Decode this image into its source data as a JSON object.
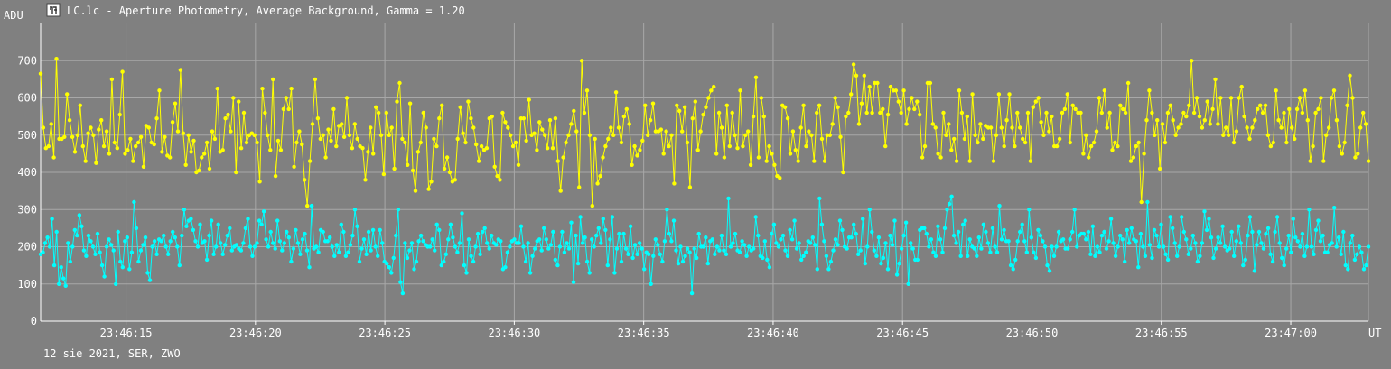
{
  "header": {
    "title": "LC.lc - Aperture Photometry, Average Background, Gamma = 1.20",
    "y_unit": "ADU",
    "x_unit": "UT"
  },
  "footer": {
    "caption": "12 sie 2021, SER, ZWO"
  },
  "colors": {
    "background": "#808080",
    "grid": "#a8a8a8",
    "axis": "#ffffff",
    "series_yellow": "#ffff00",
    "series_cyan": "#00ffff"
  },
  "chart_data": {
    "type": "line",
    "title": "LC.lc - Aperture Photometry, Average Background, Gamma = 1.20",
    "xlabel": "UT",
    "ylabel": "ADU",
    "ylim": [
      0,
      800
    ],
    "yticks": [
      0,
      100,
      200,
      300,
      400,
      500,
      600,
      700
    ],
    "xlim": [
      "23:46:11.7",
      "23:47:03.0"
    ],
    "xticks": [
      "23:46:15",
      "23:46:20",
      "23:46:25",
      "23:46:30",
      "23:46:35",
      "23:46:40",
      "23:46:45",
      "23:46:50",
      "23:46:55",
      "23:47:00"
    ],
    "grid": true,
    "marker": "dot",
    "series": [
      {
        "color": "#ffff00",
        "x_start": "23:46:11.7",
        "x_end": "23:47:03.0",
        "values": [
          665,
          520,
          465,
          470,
          530,
          440,
          705,
          490,
          490,
          495,
          610,
          540,
          495,
          455,
          500,
          580,
          470,
          430,
          505,
          520,
          500,
          425,
          515,
          540,
          470,
          510,
          450,
          650,
          480,
          465,
          555,
          670,
          450,
          460,
          490,
          430,
          470,
          480,
          495,
          415,
          525,
          520,
          480,
          475,
          545,
          620,
          455,
          495,
          445,
          440,
          535,
          585,
          510,
          675,
          505,
          420,
          500,
          455,
          485,
          400,
          405,
          440,
          450,
          480,
          410,
          510,
          490,
          625,
          455,
          460,
          545,
          555,
          510,
          600,
          400,
          590,
          465,
          560,
          480,
          500,
          505,
          500,
          480,
          375,
          625,
          560,
          500,
          460,
          650,
          390,
          485,
          460,
          570,
          600,
          570,
          625,
          415,
          480,
          510,
          475,
          380,
          310,
          430,
          530,
          650,
          545,
          490,
          500,
          440,
          515,
          485,
          570,
          470,
          525,
          530,
          495,
          600,
          500,
          465,
          530,
          490,
          470,
          465,
          380,
          455,
          520,
          450,
          575,
          560,
          500,
          395,
          560,
          500,
          520,
          410,
          590,
          640,
          490,
          480,
          420,
          585,
          405,
          350,
          455,
          480,
          560,
          520,
          355,
          375,
          490,
          470,
          545,
          580,
          410,
          440,
          400,
          375,
          380,
          490,
          575,
          505,
          480,
          590,
          545,
          520,
          475,
          430,
          470,
          460,
          465,
          545,
          550,
          415,
          390,
          380,
          560,
          535,
          520,
          500,
          470,
          480,
          420,
          545,
          545,
          485,
          595,
          500,
          505,
          460,
          535,
          515,
          500,
          465,
          540,
          465,
          545,
          430,
          350,
          440,
          480,
          500,
          530,
          565,
          510,
          360,
          700,
          560,
          620,
          500,
          310,
          490,
          370,
          390,
          440,
          470,
          490,
          520,
          500,
          615,
          520,
          480,
          550,
          570,
          530,
          420,
          470,
          445,
          460,
          485,
          580,
          500,
          540,
          585,
          510,
          510,
          515,
          450,
          510,
          470,
          500,
          370,
          580,
          565,
          510,
          575,
          480,
          360,
          545,
          590,
          460,
          510,
          555,
          575,
          600,
          620,
          630,
          450,
          560,
          520,
          440,
          580,
          470,
          560,
          500,
          465,
          620,
          470,
          500,
          510,
          420,
          550,
          655,
          440,
          600,
          550,
          430,
          470,
          450,
          420,
          390,
          385,
          580,
          575,
          545,
          450,
          510,
          460,
          430,
          520,
          580,
          470,
          510,
          500,
          430,
          560,
          580,
          490,
          430,
          500,
          500,
          530,
          600,
          575,
          495,
          400,
          550,
          560,
          610,
          690,
          660,
          530,
          585,
          660,
          560,
          630,
          560,
          640,
          640,
          560,
          570,
          470,
          555,
          630,
          620,
          620,
          590,
          560,
          620,
          530,
          570,
          600,
          570,
          590,
          555,
          440,
          470,
          640,
          640,
          530,
          520,
          450,
          440,
          560,
          500,
          530,
          460,
          490,
          430,
          620,
          560,
          490,
          550,
          430,
          610,
          500,
          480,
          530,
          490,
          525,
          520,
          520,
          430,
          500,
          610,
          520,
          470,
          540,
          610,
          520,
          470,
          560,
          520,
          490,
          480,
          560,
          430,
          575,
          590,
          600,
          535,
          500,
          560,
          510,
          550,
          470,
          470,
          490,
          560,
          570,
          610,
          480,
          580,
          570,
          560,
          560,
          450,
          500,
          440,
          470,
          480,
          510,
          600,
          560,
          620,
          520,
          560,
          460,
          480,
          470,
          580,
          570,
          560,
          640,
          430,
          440,
          470,
          480,
          320,
          450,
          540,
          620,
          560,
          500,
          540,
          410,
          530,
          480,
          560,
          580,
          540,
          500,
          520,
          530,
          560,
          550,
          580,
          700,
          560,
          600,
          550,
          520,
          540,
          590,
          530,
          570,
          650,
          530,
          600,
          500,
          520,
          500,
          600,
          480,
          510,
          600,
          630,
          550,
          520,
          490,
          520,
          540,
          570,
          580,
          560,
          580,
          500,
          470,
          480,
          620,
          540,
          520,
          560,
          480,
          570,
          520,
          490,
          570,
          600,
          560,
          620,
          540,
          430,
          470,
          560,
          570,
          600,
          430,
          500,
          520,
          600,
          620,
          540,
          470,
          450,
          480,
          580,
          660,
          600,
          440,
          450,
          520,
          560,
          530,
          430
        ]
      },
      {
        "color": "#00ffff",
        "x_start": "23:46:11.7",
        "x_end": "23:47:03.0",
        "values": [
          180,
          185,
          210,
          225,
          200,
          275,
          150,
          240,
          100,
          145,
          115,
          95,
          210,
          160,
          200,
          245,
          230,
          285,
          255,
          190,
          175,
          230,
          215,
          200,
          180,
          235,
          185,
          150,
          120,
          200,
          220,
          205,
          190,
          100,
          240,
          160,
          145,
          215,
          225,
          140,
          185,
          320,
          250,
          160,
          190,
          205,
          225,
          130,
          110,
          200,
          215,
          180,
          220,
          215,
          230,
          200,
          180,
          215,
          240,
          225,
          200,
          150,
          230,
          300,
          255,
          270,
          275,
          245,
          215,
          200,
          260,
          210,
          215,
          165,
          230,
          270,
          180,
          200,
          260,
          210,
          180,
          205,
          230,
          250,
          190,
          200,
          205,
          195,
          190,
          210,
          250,
          275,
          200,
          175,
          200,
          210,
          270,
          260,
          295,
          220,
          200,
          240,
          210,
          195,
          270,
          215,
          190,
          210,
          240,
          225,
          160,
          195,
          245,
          210,
          180,
          220,
          235,
          190,
          145,
          310,
          195,
          200,
          185,
          245,
          240,
          215,
          215,
          225,
          200,
          175,
          205,
          185,
          260,
          240,
          175,
          185,
          205,
          230,
          300,
          255,
          160,
          195,
          220,
          180,
          240,
          190,
          245,
          200,
          175,
          245,
          210,
          160,
          155,
          145,
          130,
          170,
          230,
          300,
          105,
          75,
          210,
          170,
          190,
          210,
          140,
          160,
          215,
          230,
          215,
          205,
          200,
          200,
          220,
          190,
          260,
          245,
          150,
          160,
          180,
          220,
          260,
          225,
          200,
          185,
          210,
          290,
          150,
          130,
          220,
          175,
          160,
          200,
          235,
          180,
          240,
          250,
          210,
          195,
          230,
          210,
          205,
          220,
          215,
          140,
          145,
          185,
          200,
          215,
          220,
          210,
          210,
          255,
          200,
          160,
          210,
          130,
          175,
          195,
          215,
          220,
          190,
          250,
          220,
          195,
          205,
          240,
          165,
          150,
          200,
          240,
          185,
          210,
          195,
          265,
          105,
          230,
          155,
          280,
          210,
          225,
          160,
          130,
          220,
          200,
          230,
          250,
          210,
          275,
          245,
          150,
          220,
          280,
          130,
          195,
          235,
          160,
          235,
          195,
          180,
          255,
          170,
          205,
          180,
          210,
          195,
          140,
          185,
          180,
          100,
          175,
          220,
          205,
          180,
          160,
          215,
          300,
          235,
          215,
          270,
          190,
          155,
          200,
          160,
          175,
          195,
          185,
          75,
          195,
          170,
          235,
          200,
          200,
          225,
          155,
          215,
          220,
          180,
          200,
          190,
          230,
          190,
          180,
          330,
          200,
          210,
          235,
          190,
          185,
          215,
          205,
          175,
          200,
          190,
          195,
          280,
          230,
          175,
          170,
          215,
          165,
          145,
          235,
          260,
          210,
          200,
          220,
          230,
          190,
          175,
          245,
          220,
          270,
          195,
          210,
          165,
          175,
          185,
          215,
          210,
          225,
          205,
          140,
          330,
          260,
          215,
          175,
          140,
          160,
          190,
          220,
          205,
          270,
          245,
          200,
          195,
          225,
          225,
          260,
          235,
          180,
          190,
          275,
          155,
          200,
          300,
          240,
          190,
          175,
          225,
          155,
          170,
          210,
          140,
          230,
          205,
          270,
          125,
          155,
          195,
          230,
          265,
          100,
          210,
          195,
          165,
          165,
          245,
          250,
          250,
          235,
          200,
          220,
          185,
          175,
          255,
          220,
          185,
          250,
          300,
          315,
          335,
          230,
          210,
          240,
          175,
          260,
          270,
          175,
          220,
          200,
          195,
          175,
          225,
          195,
          260,
          240,
          210,
          185,
          250,
          200,
          185,
          310,
          220,
          245,
          215,
          215,
          150,
          140,
          165,
          215,
          240,
          260,
          215,
          185,
          300,
          225,
          185,
          170,
          245,
          230,
          215,
          200,
          150,
          135,
          200,
          175,
          200,
          240,
          215,
          220,
          195,
          195,
          220,
          240,
          300,
          200,
          230,
          235,
          235,
          220,
          240,
          180,
          255,
          175,
          200,
          185,
          230,
          240,
          195,
          215,
          275,
          210,
          175,
          200,
          230,
          220,
          160,
          245,
          210,
          250,
          220,
          215,
          145,
          235,
          200,
          175,
          320,
          205,
          170,
          245,
          230,
          200,
          260,
          200,
          180,
          165,
          280,
          250,
          210,
          175,
          200,
          280,
          240,
          220,
          180,
          195,
          230,
          210,
          160,
          175,
          210,
          295,
          245,
          275,
          225,
          170,
          195,
          225,
          210,
          255,
          200,
          190,
          195,
          240,
          175,
          215,
          255,
          210,
          150,
          165,
          230,
          280,
          240,
          135,
          205,
          240,
          210,
          195,
          235,
          250,
          180,
          160,
          240,
          280,
          210,
          170,
          150,
          195,
          230,
          185,
          275,
          225,
          215,
          200,
          235,
          175,
          200,
          300,
          200,
          180,
          245,
          270,
          215,
          230,
          185,
          185,
          205,
          210,
          305,
          200,
          225,
          180,
          240,
          150,
          140,
          210,
          230,
          165,
          180,
          200,
          185,
          140,
          150,
          200
        ]
      }
    ]
  }
}
